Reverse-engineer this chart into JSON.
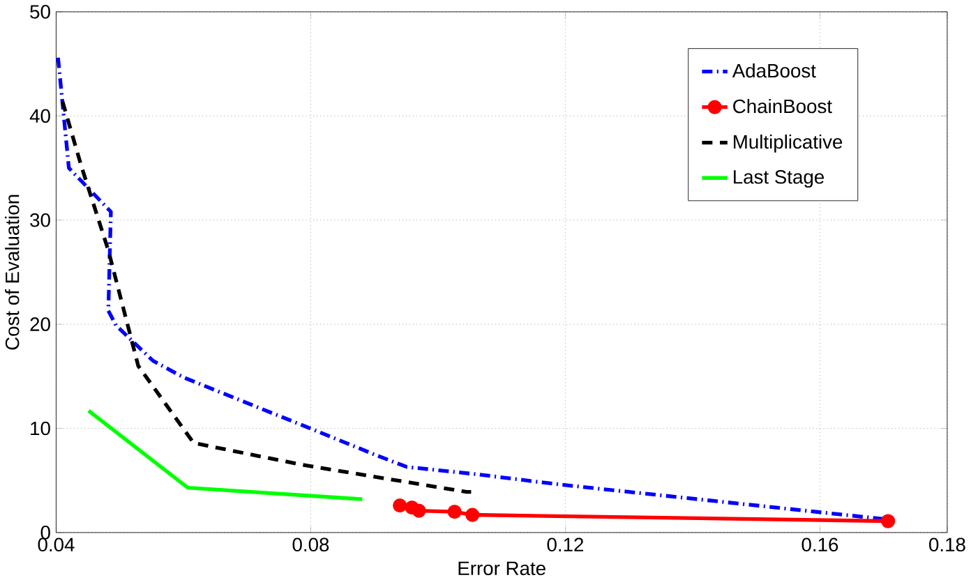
{
  "chart_data": {
    "type": "line",
    "xlabel": "Error Rate",
    "ylabel": "Cost of Evaluation",
    "xlim": [
      0.04,
      0.18
    ],
    "ylim": [
      0,
      50
    ],
    "xticks": [
      0.04,
      0.08,
      0.12,
      0.16,
      0.18
    ],
    "yticks": [
      0,
      10,
      20,
      30,
      40,
      50
    ],
    "grid": true,
    "legend": "top right",
    "series": [
      {
        "name": "AdaBoost",
        "color": "#0000ff",
        "line_style": "dashdot",
        "marker": "none",
        "x": [
          0.0403,
          0.042,
          0.0486,
          0.0482,
          0.0494,
          0.0552,
          0.06,
          0.0787,
          0.0904,
          0.0951,
          0.106,
          0.1193,
          0.17
        ],
        "values": [
          45.6,
          35,
          30.8,
          21.3,
          19.9,
          16.5,
          14.9,
          10.3,
          7.4,
          6.3,
          5.6,
          4.6,
          1.3
        ]
      },
      {
        "name": "ChainBoost",
        "color": "#ff0000",
        "line_style": "solid",
        "marker": "circle",
        "x": [
          0.094,
          0.0959,
          0.097,
          0.1026,
          0.1054,
          0.1707
        ],
        "values": [
          2.6,
          2.4,
          2.1,
          2.0,
          1.7,
          1.1
        ]
      },
      {
        "name": "Multiplicative",
        "color": "#000000",
        "line_style": "dashed",
        "marker": "none",
        "x": [
          0.041,
          0.044,
          0.0482,
          0.0529,
          0.0616,
          0.0787,
          0.1045,
          0.1052
        ],
        "values": [
          41.4,
          35.1,
          27.1,
          16.0,
          8.6,
          6.5,
          3.9,
          3.9
        ]
      },
      {
        "name": "Last Stage",
        "color": "#00ff00",
        "line_style": "solid",
        "marker": "none",
        "x": [
          0.0451,
          0.0607,
          0.0881
        ],
        "values": [
          11.7,
          4.3,
          3.2
        ]
      }
    ]
  }
}
